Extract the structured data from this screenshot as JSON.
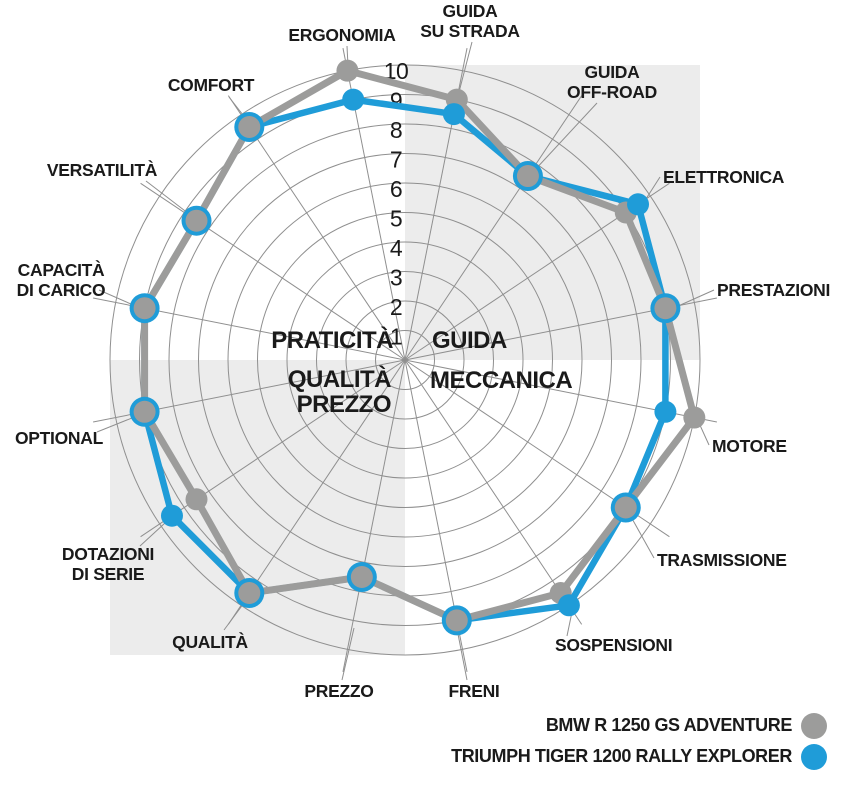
{
  "chart_data": {
    "type": "radar",
    "title": "",
    "scale": {
      "min": 0,
      "max": 10,
      "rings": 10,
      "ring_labels": [
        "1",
        "2",
        "3",
        "4",
        "5",
        "6",
        "7",
        "8",
        "9",
        "10"
      ]
    },
    "grid": true,
    "legend_position": "bottom-right",
    "categories": [
      [
        "GUIDA",
        "SU STRADA"
      ],
      [
        "GUIDA",
        "OFF-ROAD"
      ],
      [
        "ELETTRONICA"
      ],
      [
        "PRESTAZIONI"
      ],
      [
        "MOTORE"
      ],
      [
        "TRASMISSIONE"
      ],
      [
        "SOSPENSIONI"
      ],
      [
        "FRENI"
      ],
      [
        "PREZZO"
      ],
      [
        "QUALITÀ"
      ],
      [
        "DOTAZIONI",
        "DI SERIE"
      ],
      [
        "OPTIONAL"
      ],
      [
        "CAPACITÀ",
        "DI CARICO"
      ],
      [
        "VERSATILITÀ"
      ],
      [
        "COMFORT"
      ],
      [
        "ERGONOMIA"
      ]
    ],
    "series": [
      {
        "name": "BMW R 1250 GS ADVENTURE",
        "color": "#9c9c9b",
        "values": [
          9,
          7.5,
          9,
          9,
          10,
          9,
          9.5,
          9,
          7.5,
          9.5,
          8.5,
          9,
          9,
          8.5,
          9.5,
          10
        ]
      },
      {
        "name": "TRIUMPH TIGER 1200 RALLY EXPLORER",
        "color": "#1f9cd8",
        "values": [
          8.5,
          7.5,
          9.5,
          9,
          9,
          9,
          10,
          9,
          7.5,
          9.5,
          9.5,
          9,
          9,
          8.5,
          9.5,
          9
        ]
      }
    ],
    "quadrant_labels": {
      "top_left": "PRATICITÀ",
      "top_right": "GUIDA",
      "bottom_left_line1": "QUALITÀ",
      "bottom_left_line2": "PREZZO",
      "bottom_right": "MECCANICA"
    },
    "colors": {
      "grid": "#8f8f8f",
      "text": "#1a1a1a",
      "quadrant_shade": "#ececec"
    }
  },
  "legend": {
    "items": [
      {
        "label": "BMW R 1250 GS ADVENTURE",
        "color": "#9c9c9b"
      },
      {
        "label": "TRIUMPH TIGER 1200 RALLY EXPLORER",
        "color": "#1f9cd8"
      }
    ]
  }
}
